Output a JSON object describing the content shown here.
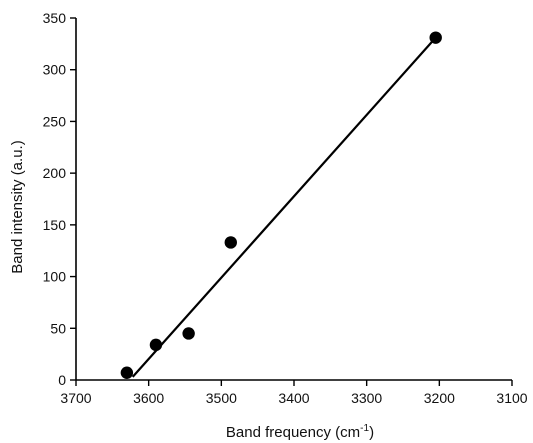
{
  "chart_data": {
    "type": "scatter",
    "title": "",
    "xlabel": "Band frequency (cm",
    "xlabel_superscript": "-1",
    "xlabel_suffix": ")",
    "ylabel": "Band intensity (a.u.)",
    "xlim": [
      3700,
      3100
    ],
    "ylim": [
      0,
      350
    ],
    "x_reversed": true,
    "grid": false,
    "xticks": [
      3700,
      3600,
      3500,
      3400,
      3300,
      3200,
      3100
    ],
    "yticks": [
      0,
      50,
      100,
      150,
      200,
      250,
      300,
      350
    ],
    "series": [
      {
        "points": [
          {
            "x": 3630,
            "y": 7
          },
          {
            "x": 3590,
            "y": 34
          },
          {
            "x": 3545,
            "y": 45
          },
          {
            "x": 3487,
            "y": 133
          },
          {
            "x": 3205,
            "y": 331
          }
        ]
      }
    ],
    "fit_line": {
      "x": [
        3622,
        3205
      ],
      "y": [
        3,
        331
      ]
    },
    "colors": {
      "marker": "#000000",
      "line": "#000000",
      "axis": "#000000"
    }
  }
}
